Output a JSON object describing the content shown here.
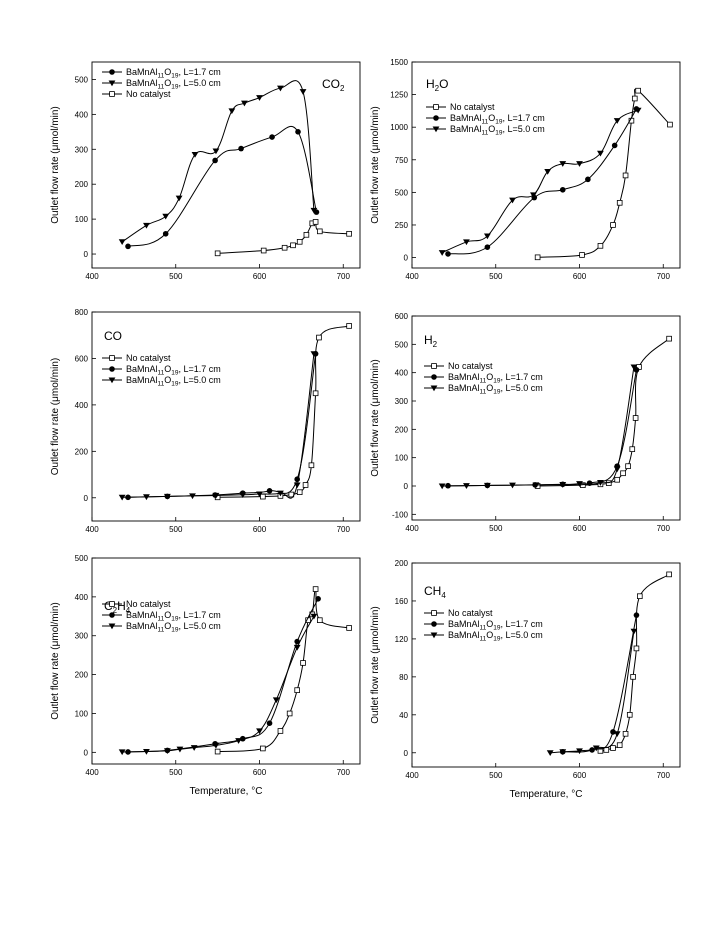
{
  "chart_data": [
    {
      "type": "line",
      "title": "CO",
      "title_sub": "2",
      "title_suffix": "",
      "ylabel": "Outlet flow rate (μmol/min)",
      "xlabel": "",
      "xlim": [
        400,
        720
      ],
      "ylim": [
        -40,
        550
      ],
      "xticks": [
        400,
        500,
        600,
        700
      ],
      "yticks": [
        0,
        100,
        200,
        300,
        400,
        500
      ],
      "legend_position": "top-left",
      "series": [
        {
          "name": "BaMnAl11O19, L=1.7 cm",
          "name_parts": [
            "BaMnAl",
            "11",
            "O",
            "19",
            ", L=1.7 cm"
          ],
          "marker": "circle",
          "x": [
            443,
            488,
            547,
            578,
            615,
            646,
            668
          ],
          "y": [
            22,
            58,
            268,
            302,
            335,
            350,
            120
          ]
        },
        {
          "name": "BaMnAl11O19, L=5.0 cm",
          "name_parts": [
            "BaMnAl",
            "11",
            "O",
            "19",
            ", L=5.0 cm"
          ],
          "marker": "triangle",
          "x": [
            436,
            465,
            488,
            504,
            523,
            548,
            567,
            582,
            600,
            625,
            652,
            665
          ],
          "y": [
            35,
            82,
            108,
            160,
            285,
            295,
            410,
            432,
            448,
            475,
            465,
            125
          ]
        },
        {
          "name": "No catalyst",
          "name_parts": [
            "No catalyst"
          ],
          "marker": "square",
          "x": [
            550,
            605,
            630,
            640,
            648,
            656,
            663,
            667,
            672,
            707
          ],
          "y": [
            2,
            10,
            18,
            25,
            35,
            55,
            88,
            92,
            65,
            58
          ]
        }
      ],
      "legend_order": [
        0,
        1,
        2
      ]
    },
    {
      "type": "line",
      "title": "H",
      "title_sub": "2",
      "title_suffix": "O",
      "ylabel": "Outlet flow rate (μmol/min)",
      "xlabel": "",
      "xlim": [
        400,
        720
      ],
      "ylim": [
        -80,
        1500
      ],
      "xticks": [
        400,
        500,
        600,
        700
      ],
      "yticks": [
        0,
        250,
        500,
        750,
        1000,
        1250,
        1500
      ],
      "legend_position": "top-left",
      "series": [
        {
          "name": "No catalyst",
          "name_parts": [
            "No catalyst"
          ],
          "marker": "square",
          "x": [
            550,
            603,
            625,
            640,
            648,
            655,
            662,
            666,
            670,
            708
          ],
          "y": [
            2,
            20,
            90,
            250,
            420,
            630,
            1050,
            1220,
            1280,
            1020
          ]
        },
        {
          "name": "BaMnAl11O19, L=1.7 cm",
          "name_parts": [
            "BaMnAl",
            "11",
            "O",
            "19",
            ", L=1.7 cm"
          ],
          "marker": "circle",
          "x": [
            443,
            490,
            546,
            580,
            610,
            642,
            668
          ],
          "y": [
            28,
            80,
            460,
            520,
            600,
            860,
            1140
          ]
        },
        {
          "name": "BaMnAl11O19, L=5.0 cm",
          "name_parts": [
            "BaMnAl",
            "11",
            "O",
            "19",
            ", L=5.0 cm"
          ],
          "marker": "triangle",
          "x": [
            436,
            465,
            490,
            520,
            545,
            562,
            580,
            600,
            625,
            645,
            670
          ],
          "y": [
            38,
            120,
            165,
            440,
            480,
            660,
            720,
            720,
            800,
            1050,
            1130
          ]
        }
      ],
      "legend_order": [
        0,
        1,
        2
      ]
    },
    {
      "type": "line",
      "title": "CO",
      "title_sub": "",
      "title_suffix": "",
      "ylabel": "Outlet flow rate (μmol/min)",
      "xlabel": "",
      "xlim": [
        400,
        720
      ],
      "ylim": [
        -100,
        800
      ],
      "xticks": [
        400,
        500,
        600,
        700
      ],
      "yticks": [
        0,
        200,
        400,
        600,
        800
      ],
      "legend_position": "top-left",
      "series": [
        {
          "name": "No catalyst",
          "name_parts": [
            "No catalyst"
          ],
          "marker": "square",
          "x": [
            550,
            604,
            625,
            638,
            648,
            655,
            662,
            667,
            671,
            707
          ],
          "y": [
            2,
            5,
            8,
            14,
            24,
            55,
            140,
            450,
            690,
            740
          ]
        },
        {
          "name": "BaMnAl11O19, L=1.7 cm",
          "name_parts": [
            "BaMnAl",
            "11",
            "O",
            "19",
            ", L=1.7 cm"
          ],
          "marker": "circle",
          "x": [
            443,
            490,
            547,
            580,
            612,
            645,
            667
          ],
          "y": [
            2,
            6,
            12,
            20,
            30,
            80,
            620
          ]
        },
        {
          "name": "BaMnAl11O19, L=5.0 cm",
          "name_parts": [
            "BaMnAl",
            "11",
            "O",
            "19",
            ", L=5.0 cm"
          ],
          "marker": "triangle",
          "x": [
            436,
            465,
            490,
            520,
            548,
            580,
            600,
            625,
            645,
            665
          ],
          "y": [
            2,
            4,
            6,
            8,
            10,
            13,
            16,
            20,
            55,
            620
          ]
        }
      ],
      "legend_order": [
        0,
        1,
        2
      ]
    },
    {
      "type": "line",
      "title": "H",
      "title_sub": "2",
      "title_suffix": "",
      "ylabel": "Outlet flow rate (μmol/min)",
      "xlabel": "",
      "xlim": [
        400,
        720
      ],
      "ylim": [
        -120,
        600
      ],
      "xticks": [
        400,
        500,
        600,
        700
      ],
      "yticks": [
        -100,
        0,
        100,
        200,
        300,
        400,
        500,
        600
      ],
      "legend_position": "top-left",
      "series": [
        {
          "name": "No catalyst",
          "name_parts": [
            "No catalyst"
          ],
          "marker": "square",
          "x": [
            550,
            604,
            625,
            635,
            645,
            652,
            658,
            663,
            667,
            671,
            707
          ],
          "y": [
            0,
            3,
            6,
            10,
            22,
            45,
            70,
            130,
            240,
            420,
            520
          ]
        },
        {
          "name": "BaMnAl11O19, L=1.7 cm",
          "name_parts": [
            "BaMnAl",
            "11",
            "O",
            "19",
            ", L=1.7 cm"
          ],
          "marker": "circle",
          "x": [
            443,
            490,
            547,
            580,
            612,
            645,
            668
          ],
          "y": [
            1,
            2,
            4,
            6,
            10,
            70,
            410
          ]
        },
        {
          "name": "BaMnAl11O19, L=5.0 cm",
          "name_parts": [
            "BaMnAl",
            "11",
            "O",
            "19",
            ", L=5.0 cm"
          ],
          "marker": "triangle",
          "x": [
            436,
            465,
            490,
            520,
            548,
            580,
            600,
            625,
            645,
            665
          ],
          "y": [
            0,
            1,
            2,
            3,
            4,
            5,
            8,
            12,
            60,
            420
          ]
        }
      ],
      "legend_order": [
        0,
        1,
        2
      ]
    },
    {
      "type": "line",
      "title": "C",
      "title_sub": "2",
      "title_suffix": "H",
      "title_sub2": "4",
      "ylabel": "Outlet flow rate (μmol/min)",
      "xlabel": "Temperature, °C",
      "xlim": [
        400,
        720
      ],
      "ylim": [
        -30,
        500
      ],
      "xticks": [
        400,
        500,
        600,
        700
      ],
      "yticks": [
        0,
        100,
        200,
        300,
        400,
        500
      ],
      "legend_position": "top-left",
      "series": [
        {
          "name": "No catalyst",
          "name_parts": [
            "No catalyst"
          ],
          "marker": "square",
          "x": [
            550,
            604,
            625,
            636,
            645,
            652,
            658,
            663,
            667,
            672,
            707
          ],
          "y": [
            2,
            10,
            55,
            100,
            160,
            230,
            340,
            355,
            420,
            340,
            320
          ]
        },
        {
          "name": "BaMnAl11O19, L=1.7 cm",
          "name_parts": [
            "BaMnAl",
            "11",
            "O",
            "19",
            ", L=1.7 cm"
          ],
          "marker": "circle",
          "x": [
            443,
            490,
            547,
            580,
            612,
            645,
            670
          ],
          "y": [
            1,
            5,
            22,
            35,
            75,
            285,
            395
          ]
        },
        {
          "name": "BaMnAl11O19, L=5.0 cm",
          "name_parts": [
            "BaMnAl",
            "11",
            "O",
            "19",
            ", L=5.0 cm"
          ],
          "marker": "triangle",
          "x": [
            436,
            465,
            490,
            505,
            522,
            548,
            575,
            600,
            620,
            645,
            665
          ],
          "y": [
            1,
            2,
            4,
            8,
            12,
            18,
            30,
            55,
            135,
            270,
            350
          ]
        }
      ],
      "legend_order": [
        0,
        1,
        2
      ]
    },
    {
      "type": "line",
      "title": "CH",
      "title_sub": "4",
      "title_suffix": "",
      "ylabel": "Outlet flow rate (μmol/min)",
      "xlabel": "Temperature, °C",
      "xlim": [
        400,
        720
      ],
      "ylim": [
        -15,
        200
      ],
      "xticks": [
        400,
        500,
        600,
        700
      ],
      "yticks": [
        0,
        40,
        80,
        120,
        160,
        200
      ],
      "legend_position": "top-left",
      "series": [
        {
          "name": "No catalyst",
          "name_parts": [
            "No catalyst"
          ],
          "marker": "square",
          "x": [
            625,
            632,
            640,
            648,
            655,
            660,
            664,
            668,
            672,
            707
          ],
          "y": [
            2,
            3,
            5,
            8,
            20,
            40,
            80,
            110,
            165,
            188
          ]
        },
        {
          "name": "BaMnAl11O19, L=1.7 cm",
          "name_parts": [
            "BaMnAl",
            "11",
            "O",
            "19",
            ", L=1.7 cm"
          ],
          "marker": "circle",
          "x": [
            580,
            615,
            640,
            668
          ],
          "y": [
            1,
            3,
            22,
            145
          ]
        },
        {
          "name": "BaMnAl11O19, L=5.0 cm",
          "name_parts": [
            "BaMnAl",
            "11",
            "O",
            "19",
            ", L=5.0 cm"
          ],
          "marker": "triangle",
          "x": [
            565,
            580,
            600,
            620,
            645,
            665
          ],
          "y": [
            0,
            1,
            2,
            5,
            20,
            128
          ]
        }
      ],
      "legend_order": [
        0,
        1,
        2
      ]
    }
  ]
}
